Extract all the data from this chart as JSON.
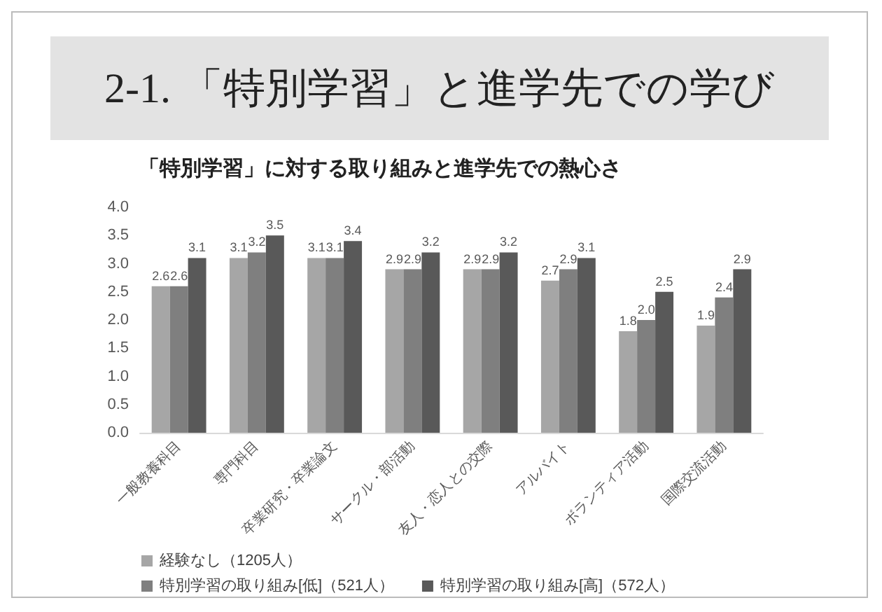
{
  "chart_data": {
    "type": "bar",
    "title": "2-1. 「特別学習」と進学先での学び",
    "subtitle": "「特別学習」に対する取り組みと進学先での熱心さ",
    "categories": [
      "一般教養科目",
      "専門科目",
      "卒業研究・卒業論文",
      "サークル・部活動",
      "友人・恋人との交際",
      "アルバイト",
      "ボランティア活動",
      "国際交流活動"
    ],
    "series": [
      {
        "name": "経験なし（1205人）",
        "color": "#a6a6a6",
        "values": [
          2.6,
          3.1,
          3.1,
          2.9,
          2.9,
          2.7,
          1.8,
          1.9
        ],
        "value_labels": [
          "2.6",
          "3.1",
          "3.1",
          "2.9",
          "2.9",
          "2.7",
          "1.8",
          "1.9"
        ]
      },
      {
        "name": "特別学習の取り組み[低]（521人）",
        "color": "#7f7f7f",
        "values": [
          2.6,
          3.2,
          3.1,
          2.9,
          2.9,
          2.9,
          2.0,
          2.4
        ],
        "value_labels": [
          "2.6",
          "3.2",
          "3.1",
          "2.9",
          "2.9",
          "2.9",
          "2.0",
          "2.4"
        ]
      },
      {
        "name": "特別学習の取り組み[高]（572人）",
        "color": "#595959",
        "values": [
          3.1,
          3.5,
          3.4,
          3.2,
          3.2,
          3.1,
          2.5,
          2.9
        ],
        "value_labels": [
          "3.1",
          "3.5",
          "3.4",
          "3.2",
          "3.2",
          "3.1",
          "2.5",
          "2.9"
        ]
      }
    ],
    "ylim": [
      0,
      4
    ],
    "yticks": [
      {
        "value": 0,
        "label": "0.0"
      },
      {
        "value": 0.5,
        "label": "0.5"
      },
      {
        "value": 1,
        "label": "1.0"
      },
      {
        "value": 1.5,
        "label": "1.5"
      },
      {
        "value": 2,
        "label": "2.0"
      },
      {
        "value": 2.5,
        "label": "2.5"
      },
      {
        "value": 3,
        "label": "3.0"
      },
      {
        "value": 3.5,
        "label": "3.5"
      },
      {
        "value": 4,
        "label": "4.0"
      }
    ],
    "grid": false,
    "legend": "bottom left"
  }
}
